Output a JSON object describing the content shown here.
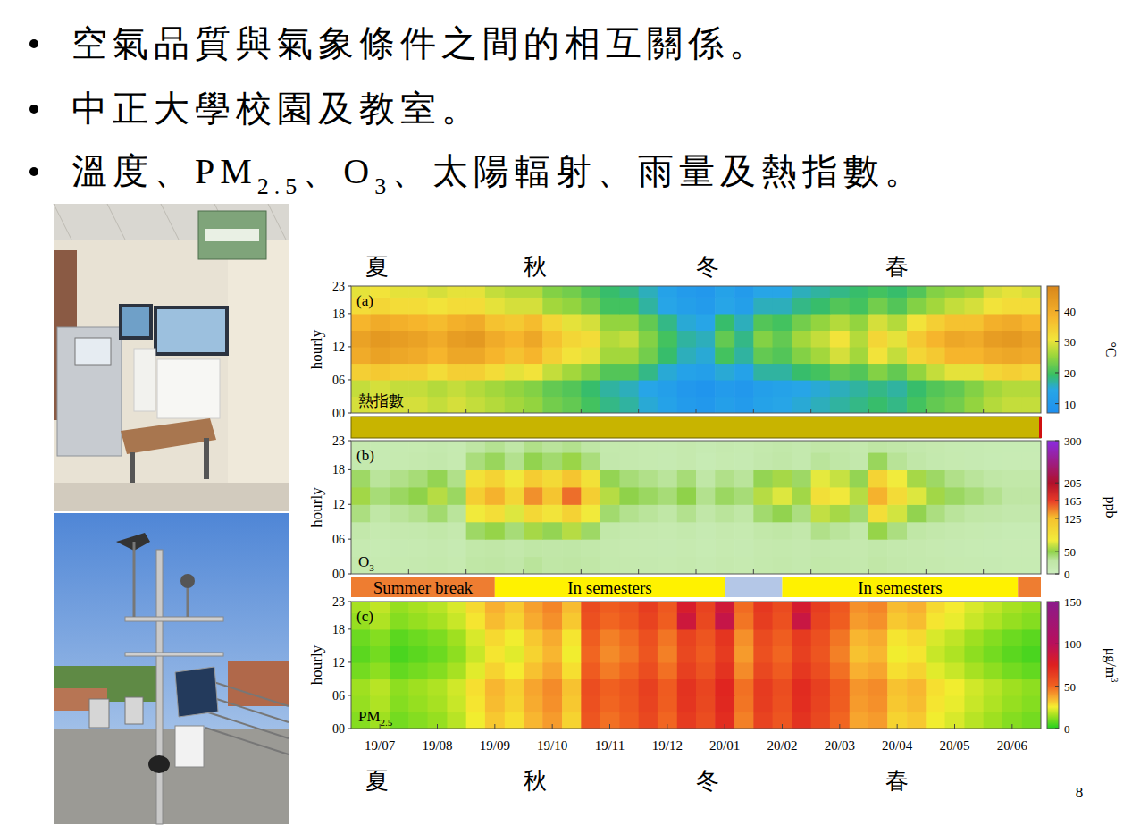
{
  "bullets": [
    [
      {
        "text": "空氣品質與氣象條件之間的相互關係。"
      }
    ],
    [
      {
        "text": "中正大學校園及教室。"
      }
    ],
    [
      {
        "text": "溫度、PM"
      },
      {
        "text": "2.5",
        "sub": true
      },
      {
        "text": "、O"
      },
      {
        "text": "3",
        "sub": true
      },
      {
        "text": "、太陽輻射、雨量及熱指數。"
      }
    ]
  ],
  "page_number": "8",
  "seasons": [
    {
      "label": "夏",
      "x": 0.45
    },
    {
      "label": "秋",
      "x": 3.2
    },
    {
      "label": "冬",
      "x": 6.2
    },
    {
      "label": "春",
      "x": 9.5
    }
  ],
  "periods": [
    {
      "label": "Summer break",
      "start": 0,
      "end": 2.5,
      "color": "#ee7d31"
    },
    {
      "label": "In semesters",
      "start": 2.5,
      "end": 6.5,
      "color": "#fff200"
    },
    {
      "start": 6.5,
      "end": 7.5,
      "color": "#b4c7e7"
    },
    {
      "label": "In semesters",
      "start": 7.5,
      "end": 11.6,
      "color": "#fff200"
    },
    {
      "start": 11.6,
      "end": 12,
      "color": "#ee7d31"
    }
  ],
  "chart_data": [
    {
      "type": "heatmap",
      "label": "(a)",
      "title": [
        {
          "text": "熱指數"
        }
      ],
      "ylabel": "hourly",
      "xlim": [
        0,
        12
      ],
      "xticks": [
        1,
        2,
        3,
        4,
        5,
        6,
        7,
        8,
        9,
        10,
        11
      ],
      "tick_labels": "y",
      "ylim": [
        0,
        23
      ],
      "yticks": [
        {
          "value": 0,
          "label": "00"
        },
        {
          "value": 6,
          "label": "06"
        },
        12,
        18,
        23
      ],
      "x": [
        0,
        0.33,
        0.67,
        1,
        1.33,
        1.67,
        2,
        2.33,
        2.67,
        3,
        3.33,
        3.67,
        4,
        4.33,
        4.67,
        5,
        5.33,
        5.67,
        6,
        6.33,
        6.67,
        7,
        7.33,
        7.67,
        8,
        8.33,
        8.67,
        9,
        9.33,
        9.67,
        10,
        10.33,
        10.67,
        11,
        11.33,
        11.67
      ],
      "y": [
        0,
        3,
        6,
        9,
        12,
        15,
        18,
        21
      ],
      "cells": [
        [
          29,
          30,
          29,
          29,
          28,
          29,
          28,
          27,
          26,
          25,
          23,
          22,
          20,
          18,
          17,
          15,
          13,
          11,
          10,
          12,
          11,
          13,
          14,
          15,
          16,
          17,
          18,
          19,
          18,
          20,
          22,
          23,
          25,
          27,
          28,
          28
        ],
        [
          28,
          29,
          28,
          28,
          27,
          28,
          27,
          26,
          25,
          24,
          22,
          21,
          19,
          17,
          16,
          14,
          12,
          10,
          9,
          11,
          10,
          12,
          13,
          14,
          15,
          16,
          17,
          18,
          17,
          19,
          21,
          22,
          24,
          26,
          27,
          27
        ],
        [
          34,
          35,
          34,
          34,
          32,
          34,
          34,
          32,
          30,
          31,
          28,
          26,
          24,
          21,
          21,
          18,
          15,
          13,
          12,
          15,
          13,
          17,
          17,
          19,
          20,
          22,
          21,
          24,
          22,
          25,
          28,
          30,
          30,
          33,
          34,
          33
        ],
        [
          40,
          42,
          41,
          40,
          38,
          41,
          41,
          38,
          36,
          38,
          34,
          31,
          30,
          26,
          26,
          23,
          19,
          16,
          15,
          20,
          17,
          22,
          21,
          24,
          26,
          29,
          26,
          31,
          28,
          33,
          35,
          38,
          38,
          40,
          41,
          40
        ],
        [
          42,
          44,
          43,
          42,
          40,
          43,
          44,
          40,
          38,
          41,
          36,
          33,
          32,
          27,
          28,
          24,
          20,
          17,
          16,
          22,
          18,
          24,
          22,
          26,
          28,
          31,
          27,
          33,
          30,
          35,
          38,
          41,
          40,
          43,
          44,
          42
        ],
        [
          38,
          40,
          39,
          38,
          37,
          39,
          40,
          36,
          35,
          37,
          33,
          30,
          29,
          25,
          25,
          22,
          18,
          15,
          14,
          19,
          16,
          21,
          20,
          23,
          25,
          27,
          25,
          29,
          27,
          31,
          34,
          36,
          36,
          39,
          40,
          38
        ],
        [
          32,
          33,
          32,
          32,
          31,
          32,
          32,
          30,
          29,
          29,
          26,
          25,
          23,
          20,
          20,
          17,
          14,
          12,
          11,
          14,
          12,
          16,
          16,
          18,
          19,
          21,
          20,
          23,
          21,
          24,
          26,
          28,
          29,
          31,
          32,
          32
        ],
        [
          30,
          31,
          30,
          30,
          29,
          30,
          30,
          28,
          27,
          27,
          24,
          23,
          21,
          19,
          18,
          16,
          13,
          11,
          10,
          13,
          11,
          14,
          14,
          16,
          17,
          18,
          19,
          20,
          19,
          21,
          24,
          25,
          26,
          29,
          30,
          29
        ]
      ],
      "colorbar": {
        "range": [
          7,
          48
        ],
        "ticks": [
          10,
          20,
          30,
          40
        ],
        "label": [
          {
            "text": "°C"
          }
        ]
      }
    },
    {
      "type": "heatmap",
      "label": "(b)",
      "title": [
        {
          "text": "O"
        },
        {
          "text": "3",
          "sub": true
        }
      ],
      "ylabel": "hourly",
      "xlim": [
        0,
        12
      ],
      "xticks": [
        1,
        2,
        3,
        4,
        5,
        6,
        7,
        8,
        9,
        10,
        11
      ],
      "tick_labels": "y",
      "ylim": [
        0,
        23
      ],
      "yticks": [
        {
          "value": 0,
          "label": "00"
        },
        {
          "value": 6,
          "label": "06"
        },
        12,
        18,
        23
      ],
      "x": [
        0,
        0.33,
        0.67,
        1,
        1.33,
        1.67,
        2,
        2.33,
        2.67,
        3,
        3.33,
        3.67,
        4,
        4.33,
        4.67,
        5,
        5.33,
        5.67,
        6,
        6.33,
        6.67,
        7,
        7.33,
        7.67,
        8,
        8.33,
        8.67,
        9,
        9.33,
        9.67,
        10,
        10.33,
        10.67,
        11,
        11.33,
        11.67
      ],
      "y": [
        0,
        3,
        6,
        9,
        12,
        15,
        18,
        21
      ],
      "cells": [
        [
          18,
          15,
          16,
          17,
          20,
          16,
          28,
          30,
          25,
          32,
          28,
          30,
          26,
          20,
          18,
          17,
          16,
          18,
          15,
          18,
          16,
          20,
          22,
          19,
          24,
          22,
          20,
          26,
          22,
          20,
          18,
          16,
          15,
          14,
          13,
          13
        ],
        [
          15,
          13,
          14,
          15,
          17,
          14,
          24,
          26,
          22,
          28,
          25,
          27,
          23,
          18,
          16,
          15,
          14,
          16,
          13,
          16,
          14,
          18,
          20,
          17,
          21,
          20,
          18,
          23,
          20,
          18,
          16,
          14,
          13,
          12,
          11,
          11
        ],
        [
          22,
          16,
          18,
          20,
          24,
          18,
          44,
          52,
          40,
          56,
          48,
          60,
          44,
          24,
          20,
          18,
          16,
          20,
          14,
          18,
          16,
          24,
          28,
          22,
          36,
          32,
          24,
          52,
          38,
          28,
          22,
          18,
          16,
          14,
          12,
          12
        ],
        [
          38,
          28,
          32,
          35,
          42,
          32,
          77,
          91,
          70,
          98,
          84,
          105,
          77,
          42,
          35,
          32,
          28,
          35,
          25,
          32,
          28,
          42,
          49,
          38,
          63,
          56,
          42,
          91,
          67,
          49,
          38,
          32,
          28,
          25,
          21,
          21
        ],
        [
          55,
          40,
          45,
          50,
          60,
          45,
          110,
          130,
          100,
          140,
          120,
          150,
          110,
          60,
          50,
          45,
          40,
          50,
          35,
          45,
          40,
          60,
          70,
          55,
          90,
          80,
          60,
          130,
          95,
          70,
          55,
          45,
          40,
          35,
          30,
          30
        ],
        [
          44,
          32,
          36,
          40,
          48,
          36,
          88,
          104,
          80,
          112,
          96,
          120,
          88,
          48,
          40,
          36,
          32,
          40,
          28,
          36,
          32,
          48,
          56,
          44,
          72,
          64,
          48,
          104,
          76,
          56,
          44,
          36,
          32,
          28,
          24,
          24
        ],
        [
          19,
          14,
          16,
          18,
          21,
          16,
          39,
          46,
          35,
          49,
          42,
          53,
          39,
          21,
          18,
          16,
          14,
          18,
          12,
          16,
          14,
          21,
          25,
          19,
          32,
          28,
          21,
          46,
          33,
          25,
          19,
          16,
          14,
          12,
          11,
          11
        ],
        [
          17,
          14,
          15,
          16,
          19,
          15,
          30,
          34,
          28,
          36,
          32,
          35,
          29,
          20,
          18,
          16,
          15,
          18,
          14,
          17,
          15,
          20,
          23,
          19,
          26,
          24,
          20,
          30,
          25,
          21,
          18,
          15,
          14,
          13,
          12,
          12
        ]
      ],
      "colorbar": {
        "range": [
          0,
          300
        ],
        "ticks": [
          0,
          50,
          125,
          165,
          205,
          300
        ],
        "label": [
          {
            "text": "ppb"
          }
        ]
      }
    },
    {
      "type": "heatmap",
      "label": "(c)",
      "title": [
        {
          "text": "PM"
        },
        {
          "text": "2.5",
          "sub": true
        }
      ],
      "ylabel": "hourly",
      "xlim": [
        0,
        12
      ],
      "xticks": [
        {
          "value": 0.5,
          "label": "19/07"
        },
        {
          "value": 1.5,
          "label": "19/08"
        },
        {
          "value": 2.5,
          "label": "19/09"
        },
        {
          "value": 3.5,
          "label": "19/10"
        },
        {
          "value": 4.5,
          "label": "19/11"
        },
        {
          "value": 5.5,
          "label": "19/12"
        },
        {
          "value": 6.5,
          "label": "20/01"
        },
        {
          "value": 7.5,
          "label": "20/02"
        },
        {
          "value": 8.5,
          "label": "20/03"
        },
        {
          "value": 9.5,
          "label": "20/04"
        },
        {
          "value": 10.5,
          "label": "20/05"
        },
        {
          "value": 11.5,
          "label": "20/06"
        }
      ],
      "ylim": [
        0,
        23
      ],
      "yticks": [
        {
          "value": 0,
          "label": "00"
        },
        {
          "value": 6,
          "label": "06"
        },
        12,
        18,
        23
      ],
      "x": [
        0,
        0.33,
        0.67,
        1,
        1.33,
        1.67,
        2,
        2.33,
        2.67,
        3,
        3.33,
        3.67,
        4,
        4.33,
        4.67,
        5,
        5.33,
        5.67,
        6,
        6.33,
        6.67,
        7,
        7.33,
        7.67,
        8,
        8.33,
        8.67,
        9,
        9.33,
        9.67,
        10,
        10.33,
        10.67,
        11,
        11.33,
        11.67
      ],
      "y": [
        0,
        3,
        6,
        9,
        12,
        15,
        18,
        21
      ],
      "cells": [
        [
          12,
          15,
          10,
          12,
          14,
          18,
          25,
          32,
          28,
          35,
          40,
          30,
          55,
          48,
          52,
          60,
          50,
          65,
          58,
          70,
          45,
          62,
          55,
          68,
          60,
          50,
          38,
          40,
          30,
          32,
          25,
          22,
          18,
          15,
          12,
          10
        ],
        [
          14,
          17,
          12,
          14,
          16,
          20,
          27,
          34,
          30,
          37,
          42,
          32,
          57,
          50,
          54,
          62,
          52,
          67,
          60,
          72,
          47,
          64,
          57,
          70,
          62,
          52,
          40,
          42,
          32,
          34,
          27,
          24,
          20,
          17,
          14,
          12
        ],
        [
          15,
          18,
          13,
          15,
          17,
          21,
          28,
          35,
          31,
          38,
          43,
          33,
          58,
          51,
          55,
          63,
          53,
          68,
          61,
          73,
          48,
          65,
          58,
          71,
          63,
          53,
          41,
          43,
          33,
          35,
          28,
          25,
          21,
          18,
          15,
          13
        ],
        [
          10,
          13,
          8,
          10,
          12,
          16,
          23,
          30,
          26,
          33,
          38,
          28,
          53,
          46,
          50,
          58,
          48,
          63,
          56,
          68,
          43,
          60,
          53,
          66,
          58,
          48,
          36,
          38,
          28,
          30,
          23,
          20,
          16,
          13,
          10,
          8
        ],
        [
          7,
          10,
          5,
          7,
          9,
          13,
          20,
          27,
          23,
          30,
          35,
          25,
          50,
          43,
          47,
          55,
          45,
          60,
          53,
          65,
          40,
          57,
          50,
          63,
          55,
          45,
          33,
          35,
          25,
          27,
          20,
          17,
          13,
          10,
          7,
          5
        ],
        [
          9,
          12,
          7,
          9,
          11,
          15,
          22,
          29,
          25,
          32,
          37,
          27,
          52,
          45,
          49,
          57,
          47,
          62,
          55,
          67,
          42,
          59,
          52,
          65,
          57,
          47,
          35,
          37,
          27,
          29,
          22,
          19,
          15,
          12,
          9,
          7
        ],
        [
          14,
          17,
          12,
          14,
          16,
          20,
          27,
          34,
          30,
          37,
          42,
          32,
          57,
          50,
          54,
          62,
          52,
          87,
          60,
          92,
          47,
          64,
          57,
          90,
          62,
          52,
          40,
          42,
          32,
          34,
          27,
          24,
          20,
          17,
          14,
          12
        ],
        [
          16,
          19,
          14,
          16,
          18,
          22,
          29,
          36,
          32,
          39,
          44,
          34,
          59,
          52,
          56,
          64,
          54,
          80,
          62,
          85,
          49,
          66,
          59,
          82,
          64,
          54,
          42,
          44,
          34,
          36,
          29,
          26,
          22,
          19,
          16,
          14
        ]
      ],
      "colorbar": {
        "range": [
          0,
          150
        ],
        "ticks": [
          0,
          50,
          100,
          150
        ],
        "label": [
          {
            "text": "μg/m"
          },
          {
            "text": "3",
            "sup": true
          }
        ]
      }
    }
  ]
}
